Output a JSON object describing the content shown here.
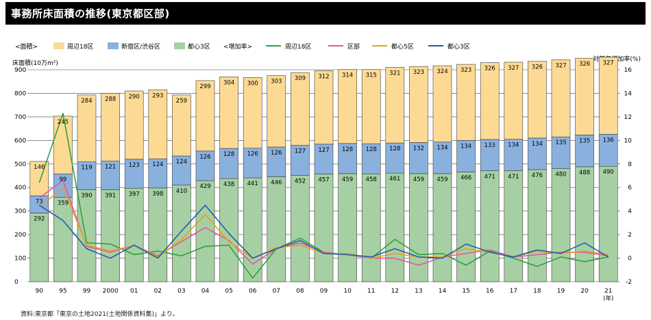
{
  "title": "事務所床面積の推移(東京都区部)",
  "source": "資料:東京都「東京の土地2021(土地関係資料集)」より。",
  "legend": {
    "area_label": "<面積>",
    "rate_label": "<増加率>",
    "bar_items": [
      {
        "label": "周辺18区",
        "color": "#FDDA94"
      },
      {
        "label": "新宿区/渋谷区",
        "color": "#8AB1DE"
      },
      {
        "label": "都心3区",
        "color": "#A6D0A4"
      }
    ],
    "line_items": [
      {
        "label": "周辺18区",
        "color": "#2FA13A"
      },
      {
        "label": "区部",
        "color": "#E25A9B"
      },
      {
        "label": "都心5区",
        "color": "#E8A01C"
      },
      {
        "label": "都心3区",
        "color": "#1F5FA8"
      }
    ]
  },
  "chart_data": {
    "type": "bar",
    "stacked": true,
    "ylabel": "床面積(10万m²)",
    "y2label": "対前年増加率(%)",
    "xunit": "(年)",
    "ylim": [
      0,
      900
    ],
    "y_ticks": [
      0,
      100,
      200,
      300,
      400,
      500,
      600,
      700,
      800,
      900
    ],
    "y2lim": [
      -2,
      16
    ],
    "y2_ticks": [
      -2,
      0,
      2,
      4,
      6,
      8,
      10,
      12,
      14,
      16
    ],
    "grid": "horizontal",
    "categories": [
      "90",
      "95",
      "99",
      "2000",
      "01",
      "02",
      "03",
      "04",
      "05",
      "06",
      "07",
      "08",
      "09",
      "10",
      "11",
      "12",
      "13",
      "14",
      "15",
      "16",
      "17",
      "18",
      "19",
      "20",
      "21"
    ],
    "series": [
      {
        "name": "都心3区",
        "color": "#A6D0A4",
        "values": [
          292,
          359,
          390,
          391,
          397,
          398,
          410,
          429,
          438,
          441,
          446,
          452,
          457,
          459,
          458,
          461,
          459,
          459,
          466,
          471,
          471,
          476,
          480,
          488,
          490
        ]
      },
      {
        "name": "新宿区/渋谷区",
        "color": "#8AB1DE",
        "values": [
          73,
          99,
          119,
          121,
          123,
          124,
          124,
          126,
          128,
          126,
          126,
          127,
          127,
          128,
          128,
          128,
          132,
          134,
          134,
          133,
          134,
          134,
          135,
          135,
          136
        ]
      },
      {
        "name": "周辺18区",
        "color": "#FDDA94",
        "values": [
          146,
          245,
          284,
          288,
          290,
          293,
          259,
          299,
          304,
          300,
          303,
          309,
          312,
          314,
          315,
          321,
          323,
          324,
          323,
          326,
          327,
          326,
          327,
          326,
          327
        ]
      }
    ],
    "lines": [
      {
        "name": "周辺18区",
        "color": "#2FA13A",
        "values": [
          6.4,
          12.3,
          1.3,
          1.2,
          0.3,
          0.6,
          0.2,
          1.0,
          1.1,
          -1.7,
          0.8,
          1.7,
          0.5,
          0.3,
          0.0,
          1.6,
          0.3,
          0.4,
          -0.6,
          0.6,
          0.0,
          -0.7,
          0.1,
          -0.3,
          0.1
        ]
      },
      {
        "name": "区部",
        "color": "#E25A9B",
        "values": [
          5.1,
          6.6,
          1.0,
          0.5,
          1.1,
          0.2,
          1.4,
          2.6,
          1.5,
          -0.5,
          0.8,
          1.3,
          0.5,
          0.3,
          0.0,
          0.0,
          -0.6,
          0.1,
          0.4,
          0.7,
          0.1,
          0.3,
          0.5,
          0.5,
          0.2
        ]
      },
      {
        "name": "都心5区",
        "color": "#E8A01C",
        "values": [
          4.3,
          6.0,
          1.1,
          0.6,
          1.1,
          0.1,
          1.6,
          3.7,
          1.4,
          0.0,
          0.9,
          1.1,
          0.4,
          0.4,
          0.0,
          0.4,
          0.1,
          0.1,
          0.8,
          0.5,
          0.1,
          0.6,
          0.4,
          0.6,
          0.3
        ]
      },
      {
        "name": "都心3区",
        "color": "#1F5FA8",
        "values": [
          4.5,
          3.2,
          0.8,
          0.0,
          1.1,
          0.0,
          2.3,
          4.5,
          2.1,
          0.0,
          0.8,
          1.5,
          0.4,
          0.3,
          0.1,
          0.8,
          0.1,
          0.0,
          1.2,
          0.5,
          0.1,
          0.7,
          0.4,
          1.3,
          0.1
        ]
      }
    ]
  }
}
